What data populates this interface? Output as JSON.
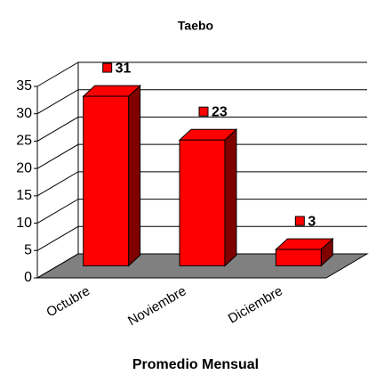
{
  "chart_data": {
    "type": "bar3d",
    "title": "Taebo",
    "x_label": "Promedio Mensual",
    "categories": [
      "Octubre",
      "Noviembre",
      "Diciembre"
    ],
    "values": [
      31,
      23,
      3
    ],
    "color": "#ff0000",
    "ylim": [
      0,
      35
    ],
    "yticks": [
      0,
      5,
      10,
      15,
      20,
      25,
      30,
      35
    ],
    "grid": true
  }
}
